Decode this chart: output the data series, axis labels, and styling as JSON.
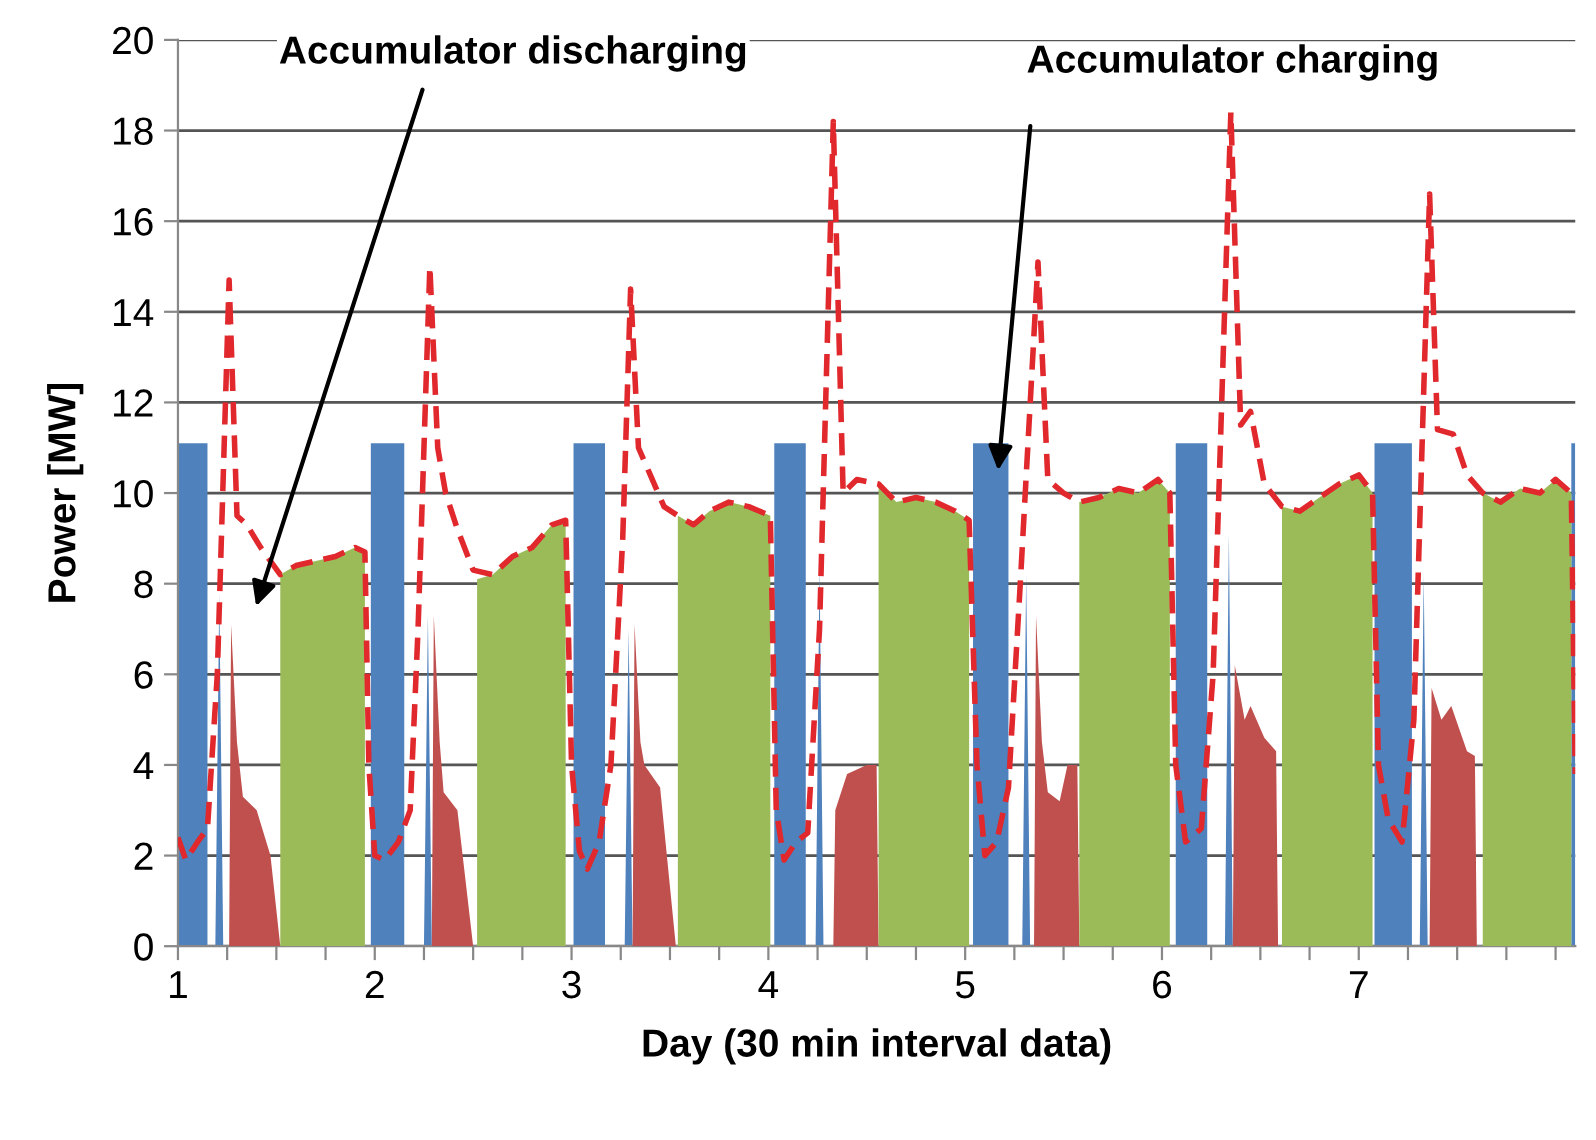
{
  "chart_data": {
    "type": "area",
    "xlabel": "Day (30 min interval data)",
    "ylabel": "Power [MW]",
    "xlim": [
      1,
      8.1
    ],
    "ylim": [
      0,
      20
    ],
    "yticks": [
      0,
      2,
      4,
      6,
      8,
      10,
      12,
      14,
      16,
      18,
      20
    ],
    "xticks": [
      1,
      {
        "value": 1.25,
        "label": null
      },
      {
        "value": 1.5,
        "label": null
      },
      {
        "value": 1.75,
        "label": null
      },
      2,
      {
        "value": 2.25,
        "label": null
      },
      {
        "value": 2.5,
        "label": null
      },
      {
        "value": 2.75,
        "label": null
      },
      3,
      {
        "value": 3.25,
        "label": null
      },
      {
        "value": 3.5,
        "label": null
      },
      {
        "value": 3.75,
        "label": null
      },
      4,
      {
        "value": 4.25,
        "label": null
      },
      {
        "value": 4.5,
        "label": null
      },
      {
        "value": 4.75,
        "label": null
      },
      5,
      {
        "value": 5.25,
        "label": null
      },
      {
        "value": 5.5,
        "label": null
      },
      {
        "value": 5.75,
        "label": null
      },
      6,
      {
        "value": 6.25,
        "label": null
      },
      {
        "value": 6.5,
        "label": null
      },
      {
        "value": 6.75,
        "label": null
      },
      7,
      {
        "value": 7.25,
        "label": null
      },
      {
        "value": 7.5,
        "label": null
      },
      {
        "value": 7.75,
        "label": null
      },
      {
        "value": 8,
        "label": null
      }
    ],
    "grid": "y",
    "annotations": [
      "Accumulator discharging",
      "Accumulator charging"
    ],
    "series": [
      {
        "color": "#4f81bd",
        "x": [
          1.0,
          1.0,
          1.15,
          1.15,
          1.19,
          1.21,
          1.23,
          1.98,
          1.98,
          2.15,
          2.15,
          2.25,
          2.27,
          2.29,
          3.01,
          3.01,
          3.17,
          3.17,
          3.27,
          3.29,
          3.31,
          4.03,
          4.03,
          4.19,
          4.19,
          4.24,
          4.26,
          4.28,
          5.04,
          5.04,
          5.22,
          5.22,
          5.29,
          5.31,
          5.33,
          6.07,
          6.07,
          6.23,
          6.23,
          6.32,
          6.34,
          6.36,
          7.08,
          7.08,
          7.27,
          7.27,
          7.31,
          7.33,
          7.35,
          8.08,
          8.08,
          8.1
        ],
        "values": [
          0,
          11.1,
          11.1,
          0,
          0,
          7.8,
          0,
          0,
          11.1,
          11.1,
          0,
          0,
          7.3,
          0,
          0,
          11.1,
          11.1,
          0,
          0,
          7.0,
          0,
          0,
          11.1,
          11.1,
          0,
          0,
          8.4,
          0,
          0,
          11.1,
          11.1,
          0,
          0,
          8.2,
          0,
          0,
          11.1,
          11.1,
          0,
          0,
          9.1,
          0,
          0,
          11.1,
          11.1,
          0,
          0,
          8.2,
          0,
          0,
          11.1,
          11.1
        ]
      },
      {
        "color": "#c0504d",
        "x": [
          1.26,
          1.27,
          1.3,
          1.33,
          1.4,
          1.47,
          1.52,
          2.29,
          2.3,
          2.33,
          2.35,
          2.42,
          2.5,
          3.31,
          3.32,
          3.35,
          3.37,
          3.45,
          3.53,
          4.33,
          4.34,
          4.4,
          4.5,
          4.55,
          4.56,
          5.35,
          5.36,
          5.39,
          5.42,
          5.48,
          5.52,
          5.57,
          5.58,
          6.36,
          6.37,
          6.42,
          6.45,
          6.52,
          6.58,
          6.59,
          7.36,
          7.37,
          7.42,
          7.47,
          7.55,
          7.59,
          7.6
        ],
        "values": [
          0,
          7.1,
          4.5,
          3.3,
          3.0,
          2.0,
          0,
          0,
          7.3,
          4.5,
          3.4,
          3.0,
          0,
          0,
          7.1,
          4.5,
          4.0,
          3.5,
          0,
          0,
          3.0,
          3.8,
          4.0,
          4.0,
          0,
          0,
          7.3,
          4.5,
          3.4,
          3.2,
          4.0,
          4.0,
          0,
          0,
          6.2,
          5.0,
          5.3,
          4.6,
          4.3,
          0,
          0,
          5.7,
          5.0,
          5.3,
          4.3,
          4.2,
          0
        ]
      },
      {
        "color": "#9bbb59",
        "x": [
          1.52,
          1.52,
          1.6,
          1.7,
          1.8,
          1.9,
          1.95,
          1.95,
          2.52,
          2.52,
          2.6,
          2.7,
          2.8,
          2.9,
          2.97,
          2.97,
          3.54,
          3.54,
          3.62,
          3.7,
          3.8,
          3.9,
          4.01,
          4.01,
          4.56,
          4.56,
          4.65,
          4.75,
          4.85,
          4.95,
          5.02,
          5.02,
          5.58,
          5.58,
          5.68,
          5.78,
          5.88,
          5.98,
          6.04,
          6.04,
          6.61,
          6.61,
          6.7,
          6.8,
          6.9,
          7.0,
          7.07,
          7.07,
          7.63,
          7.63,
          7.72,
          7.82,
          7.92,
          8.0,
          8.08,
          8.08
        ],
        "values": [
          0,
          8.2,
          8.4,
          8.5,
          8.6,
          8.8,
          8.7,
          0,
          0,
          8.1,
          8.2,
          8.6,
          8.8,
          9.3,
          9.4,
          0,
          0,
          9.5,
          9.3,
          9.6,
          9.8,
          9.7,
          9.5,
          0,
          0,
          10.2,
          9.8,
          9.9,
          9.8,
          9.6,
          9.4,
          0,
          0,
          9.8,
          9.9,
          10.1,
          10.0,
          10.3,
          10.0,
          0,
          0,
          9.7,
          9.6,
          9.9,
          10.2,
          10.4,
          10.0,
          0,
          0,
          10.0,
          9.8,
          10.1,
          10.0,
          10.3,
          10.0,
          0
        ]
      },
      {
        "type": "line",
        "color": "#e0282d",
        "line_style": "dashed",
        "x": [
          1.0,
          1.04,
          1.1,
          1.15,
          1.2,
          1.26,
          1.3,
          1.35,
          1.42,
          1.52,
          1.6,
          1.7,
          1.8,
          1.9,
          1.95,
          1.97,
          2.0,
          2.05,
          2.12,
          2.18,
          2.22,
          2.28,
          2.32,
          2.36,
          2.42,
          2.5,
          2.6,
          2.7,
          2.8,
          2.9,
          2.97,
          3.0,
          3.04,
          3.08,
          3.14,
          3.2,
          3.26,
          3.3,
          3.34,
          3.4,
          3.47,
          3.54,
          3.62,
          3.7,
          3.8,
          3.9,
          4.01,
          4.04,
          4.08,
          4.14,
          4.2,
          4.26,
          4.33,
          4.38,
          4.45,
          4.56,
          4.65,
          4.75,
          4.85,
          4.95,
          5.02,
          5.06,
          5.1,
          5.16,
          5.22,
          5.28,
          5.37,
          5.42,
          5.5,
          5.58,
          5.68,
          5.78,
          5.88,
          5.98,
          6.04,
          6.07,
          6.12,
          6.2,
          6.26,
          6.35,
          6.4,
          6.45,
          6.52,
          6.61,
          6.7,
          6.8,
          6.9,
          7.0,
          7.07,
          7.1,
          7.15,
          7.22,
          7.28,
          7.36,
          7.4,
          7.48,
          7.55,
          7.63,
          7.72,
          7.82,
          7.92,
          8.0,
          8.08,
          8.1
        ],
        "values": [
          2.4,
          1.9,
          2.3,
          2.6,
          6.0,
          14.7,
          9.5,
          9.3,
          8.8,
          8.2,
          8.4,
          8.5,
          8.6,
          8.8,
          8.7,
          4.0,
          2.0,
          1.9,
          2.3,
          3.0,
          7.0,
          15.0,
          11.0,
          10.0,
          9.2,
          8.3,
          8.2,
          8.6,
          8.8,
          9.3,
          9.4,
          4.0,
          2.1,
          1.7,
          2.3,
          4.0,
          9.0,
          14.5,
          11.0,
          10.4,
          9.7,
          9.5,
          9.3,
          9.6,
          9.8,
          9.7,
          9.5,
          3.0,
          1.9,
          2.3,
          2.5,
          7.0,
          18.2,
          10.0,
          10.3,
          10.2,
          9.8,
          9.9,
          9.8,
          9.6,
          9.4,
          4.0,
          2.0,
          2.3,
          3.5,
          8.0,
          15.1,
          10.3,
          10.0,
          9.8,
          9.9,
          10.1,
          10.0,
          10.3,
          10.0,
          4.0,
          2.3,
          2.6,
          6.0,
          18.4,
          11.5,
          11.8,
          10.2,
          9.7,
          9.6,
          9.9,
          10.2,
          10.4,
          10.0,
          4.0,
          2.8,
          2.3,
          5.0,
          16.6,
          11.4,
          11.3,
          10.4,
          10.0,
          9.8,
          10.1,
          10.0,
          10.3,
          10.0,
          3.8
        ]
      }
    ]
  }
}
